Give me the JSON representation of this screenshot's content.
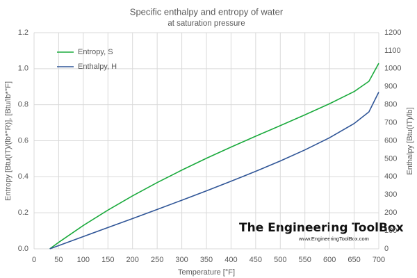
{
  "chart_data": {
    "type": "line",
    "title": "Specific enthalpy and entropy of water",
    "subtitle": "at saturation pressure",
    "x_label": "Temperature [°F]",
    "y_label": "Entropy [Btu(IT)/(lb*°R)], [Btu/lb*°F]",
    "y2_label": "Enthalpy  [Btu(IT)/lb]",
    "annotations": [
      "The Engineering ToolBox",
      "www.EngineeringToolBox.com"
    ],
    "x": [
      32,
      50,
      100,
      150,
      200,
      250,
      300,
      350,
      400,
      450,
      500,
      550,
      600,
      650,
      680,
      700
    ],
    "series": [
      {
        "name": "Entropy, S",
        "color": "#1aaa3c",
        "axis": "y",
        "values": [
          0,
          0.036,
          0.1296,
          0.215,
          0.294,
          0.3677,
          0.4369,
          0.5025,
          0.5647,
          0.625,
          0.6841,
          0.7436,
          0.8055,
          0.873,
          0.93,
          1.03
        ]
      },
      {
        "name": "Enthalpy, H",
        "color": "#2f5597",
        "axis": "y2",
        "values": [
          0,
          18,
          68,
          118,
          168,
          218.6,
          269.7,
          321.8,
          375.1,
          430.1,
          487.7,
          549.1,
          616.7,
          695.5,
          760,
          870
        ]
      }
    ],
    "xlim": [
      0,
      700
    ],
    "xticks": [
      0,
      50,
      100,
      150,
      200,
      250,
      300,
      350,
      400,
      450,
      500,
      550,
      600,
      650,
      700
    ],
    "ylim": [
      0,
      1.2
    ],
    "yticks": [
      {
        "value": 0,
        "label": "0.0"
      },
      0.2,
      0.4,
      0.6,
      0.8,
      {
        "value": 1,
        "label": "1.0"
      },
      1.2
    ],
    "y2lim": [
      0,
      1200
    ],
    "y2ticks": [
      0,
      100,
      200,
      300,
      400,
      500,
      600,
      700,
      800,
      900,
      1000,
      1100,
      1200
    ],
    "grid": true,
    "legend": "upper-left"
  }
}
